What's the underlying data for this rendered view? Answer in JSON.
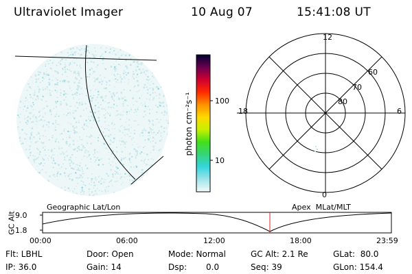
{
  "header": {
    "instrument": "Ultraviolet Imager",
    "date": "10 Aug 07",
    "time": "15:41:08 UT"
  },
  "colorbar": {
    "unit_label": "photon cm⁻²s⁻¹",
    "ticks": [
      {
        "label": "100",
        "value": 100
      },
      {
        "label": "10",
        "value": 10
      }
    ]
  },
  "polar_plot": {
    "mlt_labels": {
      "top": "12",
      "left": "18",
      "right": "6",
      "bottom": "0"
    },
    "lat_labels": [
      "60",
      "70",
      "80"
    ]
  },
  "timeline": {
    "axis_label": "GC Alt",
    "y_ticks": [
      "9.0",
      "1.8"
    ],
    "left_title": "Geographic Lat/Lon",
    "right_title": "Apex  MLat/MLT",
    "x_ticks": [
      "00:00",
      "06:00",
      "12:00",
      "18:00",
      "23:59"
    ],
    "current_time_color": "#dd2222"
  },
  "info": {
    "flt": "Flt: LBHL",
    "door": "Door: Open",
    "mode": "Mode: Normal",
    "gc_alt": "GC Alt: 2.1 Re",
    "glat": "GLat:  80.0",
    "ip": "IP: 36.0",
    "gain": "Gain: 14",
    "dsp_label": "Dsp:",
    "dsp_value": "0.0",
    "seq": "Seq: 39",
    "glon": "GLon: 154.4"
  },
  "colors": {
    "speckle": "#bfe3e6",
    "speckle_accent": "#8fd6e0",
    "colorbar_stops": [
      "#f4fafb",
      "#9fe4ea",
      "#35d5dc",
      "#35d57a",
      "#43e018",
      "#c8f000",
      "#ffd800",
      "#ff9000",
      "#ff2a00",
      "#d00030",
      "#6a0050",
      "#000030"
    ]
  }
}
